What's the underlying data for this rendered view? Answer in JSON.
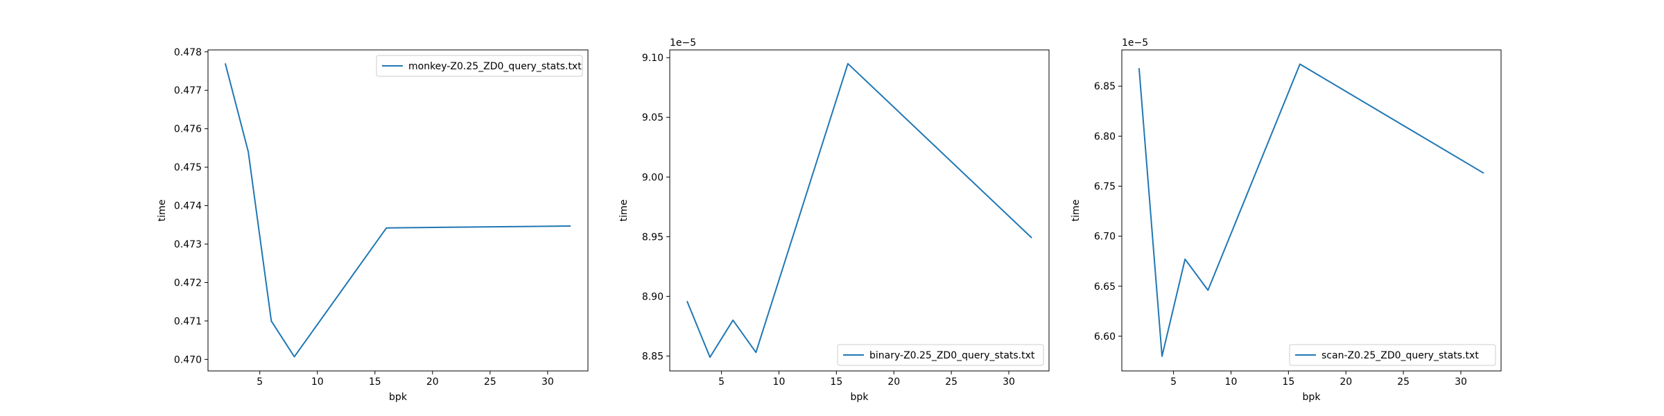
{
  "chart_data": [
    {
      "type": "line",
      "title": "",
      "xlabel": "bpk",
      "ylabel": "time",
      "offset_label": "",
      "xlim": [
        0.5,
        33.5
      ],
      "ylim": [
        0.4697,
        0.47805
      ],
      "xticks": [
        5,
        10,
        15,
        20,
        25,
        30
      ],
      "xtick_labels": [
        "5",
        "10",
        "15",
        "20",
        "25",
        "30"
      ],
      "yticks": [
        0.47,
        0.471,
        0.472,
        0.473,
        0.474,
        0.475,
        0.476,
        0.477,
        0.478
      ],
      "ytick_labels": [
        "0.470",
        "0.471",
        "0.472",
        "0.473",
        "0.474",
        "0.475",
        "0.476",
        "0.477",
        "0.478"
      ],
      "legend_position": "upper right",
      "color": "#1f77b4",
      "series": [
        {
          "name": "monkey-Z0.25_ZD0_query_stats.txt",
          "x": [
            2,
            4,
            6,
            8,
            16,
            32
          ],
          "y": [
            0.4777,
            0.4754,
            0.471,
            0.47007,
            0.47342,
            0.47347
          ]
        }
      ]
    },
    {
      "type": "line",
      "title": "",
      "xlabel": "bpk",
      "ylabel": "time",
      "offset_label": "1e−5",
      "xlim": [
        0.5,
        33.5
      ],
      "ylim": [
        8.8375,
        9.1065
      ],
      "xticks": [
        5,
        10,
        15,
        20,
        25,
        30
      ],
      "xtick_labels": [
        "5",
        "10",
        "15",
        "20",
        "25",
        "30"
      ],
      "yticks": [
        8.85,
        8.9,
        8.95,
        9.0,
        9.05,
        9.1
      ],
      "ytick_labels": [
        "8.85",
        "8.90",
        "8.95",
        "9.00",
        "9.05",
        "9.10"
      ],
      "legend_position": "lower right",
      "color": "#1f77b4",
      "series": [
        {
          "name": "binary-Z0.25_ZD0_query_stats.txt",
          "x": [
            2,
            4,
            6,
            8,
            16,
            32
          ],
          "y": [
            8.896,
            8.849,
            8.88,
            8.853,
            9.095,
            8.949
          ]
        }
      ]
    },
    {
      "type": "line",
      "title": "",
      "xlabel": "bpk",
      "ylabel": "time",
      "offset_label": "1e−5",
      "xlim": [
        0.5,
        33.5
      ],
      "ylim": [
        6.5653,
        6.8862
      ],
      "xticks": [
        5,
        10,
        15,
        20,
        25,
        30
      ],
      "xtick_labels": [
        "5",
        "10",
        "15",
        "20",
        "25",
        "30"
      ],
      "yticks": [
        6.6,
        6.65,
        6.7,
        6.75,
        6.8,
        6.85
      ],
      "ytick_labels": [
        "6.60",
        "6.65",
        "6.70",
        "6.75",
        "6.80",
        "6.85"
      ],
      "legend_position": "lower right",
      "color": "#1f77b4",
      "series": [
        {
          "name": "scan-Z0.25_ZD0_query_stats.txt",
          "x": [
            2,
            4,
            6,
            8,
            16,
            32
          ],
          "y": [
            6.868,
            6.58,
            6.677,
            6.646,
            6.872,
            6.763
          ]
        }
      ]
    }
  ]
}
